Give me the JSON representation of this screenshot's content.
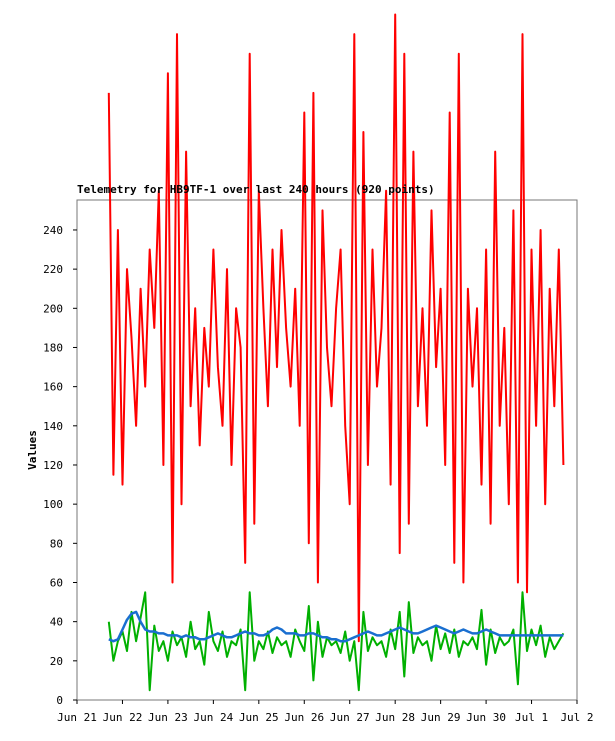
{
  "chart_data": {
    "type": "line",
    "title": "Telemetry for HB9TF-1 over last 240 hours (920 points)",
    "y_label": "Values",
    "x": [
      0.7,
      0.8,
      0.9,
      1.0,
      1.1,
      1.2,
      1.3,
      1.4,
      1.5,
      1.6,
      1.7,
      1.8,
      1.9,
      2.0,
      2.1,
      2.2,
      2.3,
      2.4,
      2.5,
      2.6,
      2.7,
      2.8,
      2.9,
      3.0,
      3.1,
      3.2,
      3.3,
      3.4,
      3.5,
      3.6,
      3.7,
      3.8,
      3.9,
      4.0,
      4.1,
      4.2,
      4.3,
      4.4,
      4.5,
      4.6,
      4.7,
      4.8,
      4.9,
      5.0,
      5.1,
      5.2,
      5.3,
      5.4,
      5.5,
      5.6,
      5.7,
      5.8,
      5.9,
      6.0,
      6.1,
      6.2,
      6.3,
      6.4,
      6.5,
      6.6,
      6.7,
      6.8,
      6.9,
      7.0,
      7.1,
      7.2,
      7.3,
      7.4,
      7.5,
      7.6,
      7.7,
      7.8,
      7.9,
      8.0,
      8.1,
      8.2,
      8.3,
      8.4,
      8.5,
      8.6,
      8.7,
      8.8,
      8.9,
      9.0,
      9.1,
      9.2,
      9.3,
      9.4,
      9.5,
      9.6,
      9.7,
      9.8,
      9.9,
      10.0,
      10.1,
      10.2,
      10.3,
      10.4,
      10.5,
      10.6,
      10.7
    ],
    "series": [
      {
        "color": "#ff0000",
        "values": [
          310,
          115,
          240,
          110,
          220,
          185,
          140,
          210,
          160,
          230,
          190,
          260,
          120,
          320,
          60,
          340,
          100,
          280,
          150,
          200,
          130,
          190,
          160,
          230,
          170,
          140,
          220,
          120,
          200,
          180,
          70,
          330,
          90,
          260,
          200,
          150,
          230,
          170,
          240,
          190,
          160,
          210,
          140,
          300,
          80,
          310,
          60,
          250,
          180,
          150,
          200,
          230,
          140,
          100,
          340,
          30,
          290,
          120,
          230,
          160,
          190,
          260,
          110,
          350,
          75,
          330,
          90,
          280,
          150,
          200,
          140,
          250,
          170,
          210,
          120,
          300,
          70,
          330,
          60,
          210,
          160,
          200,
          110,
          230,
          90,
          280,
          140,
          190,
          100,
          250,
          60,
          340,
          55,
          230,
          140,
          240,
          100,
          210,
          150,
          230,
          120
        ]
      },
      {
        "color": "#00b000",
        "values": [
          40,
          20,
          30,
          35,
          25,
          45,
          30,
          42,
          55,
          5,
          38,
          25,
          30,
          20,
          35,
          28,
          32,
          22,
          40,
          26,
          30,
          18,
          45,
          30,
          25,
          35,
          22,
          30,
          28,
          36,
          5,
          55,
          20,
          30,
          26,
          35,
          24,
          32,
          28,
          30,
          22,
          36,
          30,
          25,
          48,
          10,
          40,
          22,
          32,
          28,
          30,
          24,
          35,
          20,
          30,
          5,
          45,
          25,
          32,
          28,
          30,
          22,
          36,
          26,
          45,
          12,
          50,
          24,
          32,
          28,
          30,
          20,
          38,
          26,
          34,
          24,
          36,
          22,
          30,
          28,
          32,
          26,
          46,
          18,
          36,
          24,
          32,
          28,
          30,
          36,
          8,
          55,
          25,
          36,
          28,
          38,
          22,
          32,
          26,
          30,
          34
        ]
      },
      {
        "color": "#1a6fd0",
        "values": [
          31,
          30,
          31,
          36,
          41,
          44,
          45,
          40,
          36,
          35,
          35,
          34,
          34,
          33,
          33,
          33,
          32,
          33,
          32,
          32,
          31,
          31,
          32,
          33,
          34,
          33,
          32,
          32,
          33,
          34,
          35,
          34,
          34,
          33,
          33,
          34,
          36,
          37,
          36,
          34,
          34,
          34,
          33,
          33,
          34,
          34,
          33,
          32,
          32,
          31,
          31,
          30,
          30,
          31,
          32,
          33,
          34,
          35,
          34,
          33,
          33,
          34,
          35,
          36,
          37,
          36,
          35,
          34,
          34,
          35,
          36,
          37,
          38,
          37,
          36,
          35,
          34,
          35,
          36,
          35,
          34,
          34,
          35,
          36,
          35,
          34,
          33,
          33,
          33,
          33,
          33,
          33,
          33,
          33,
          33,
          33,
          33,
          33,
          33,
          33,
          33
        ]
      }
    ],
    "xlim": [
      0,
      11
    ],
    "xticks": [
      {
        "value": 0,
        "label": "Jun 21"
      },
      {
        "value": 1,
        "label": "Jun 22"
      },
      {
        "value": 2,
        "label": "Jun 23"
      },
      {
        "value": 3,
        "label": "Jun 24"
      },
      {
        "value": 4,
        "label": "Jun 25"
      },
      {
        "value": 5,
        "label": "Jun 26"
      },
      {
        "value": 6,
        "label": "Jun 27"
      },
      {
        "value": 7,
        "label": "Jun 28"
      },
      {
        "value": 8,
        "label": "Jun 29"
      },
      {
        "value": 9,
        "label": "Jun 30"
      },
      {
        "value": 10,
        "label": "Jul 1"
      },
      {
        "value": 11,
        "label": "Jul 2"
      }
    ],
    "ylim": [
      0,
      255.3
    ],
    "yticks": [
      0,
      20,
      40,
      60,
      80,
      100,
      120,
      140,
      160,
      180,
      200,
      220,
      240
    ]
  }
}
